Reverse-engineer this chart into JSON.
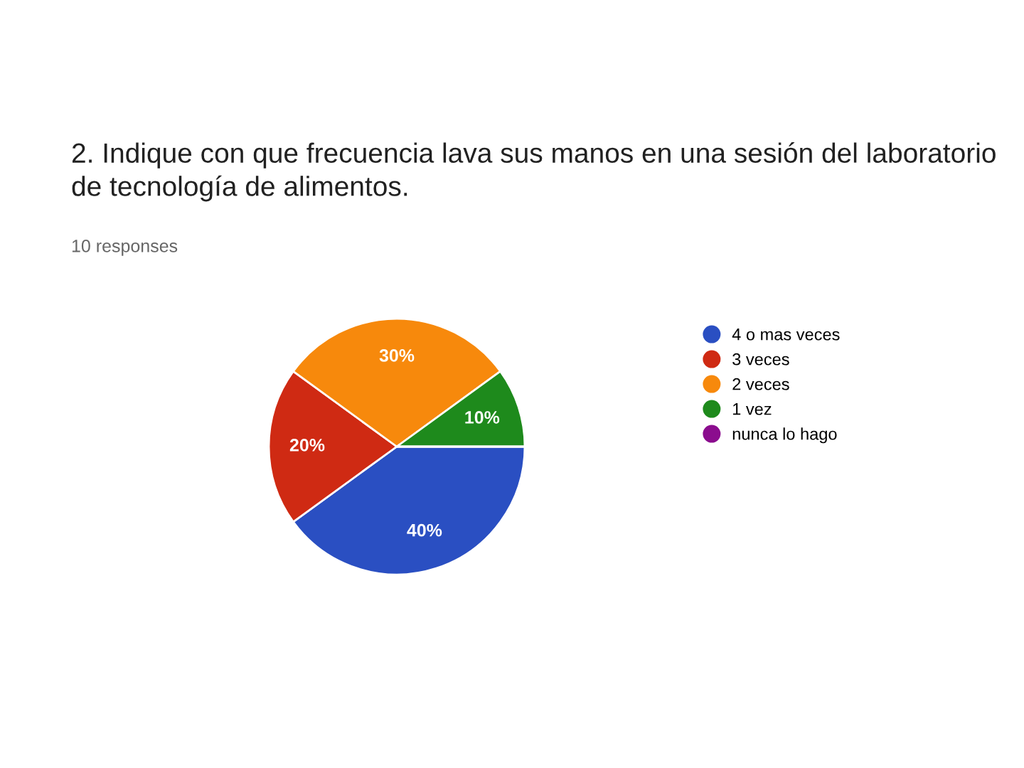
{
  "chart_data": {
    "type": "pie",
    "title": "2. Indique con que frecuencia lava sus manos en una sesión del laboratorio de tecnología de alimentos.",
    "subtitle": "10 responses",
    "categories": [
      "4 o mas veces",
      "3 veces",
      "2 veces",
      "1 vez",
      "nunca lo hago"
    ],
    "values": [
      40,
      20,
      30,
      10,
      0
    ],
    "colors": [
      "#2a4fc2",
      "#cf2a13",
      "#f7890c",
      "#1e8a1c",
      "#8b0d8e"
    ],
    "value_labels": [
      "40%",
      "20%",
      "30%",
      "10%",
      null
    ],
    "legend": "right"
  }
}
